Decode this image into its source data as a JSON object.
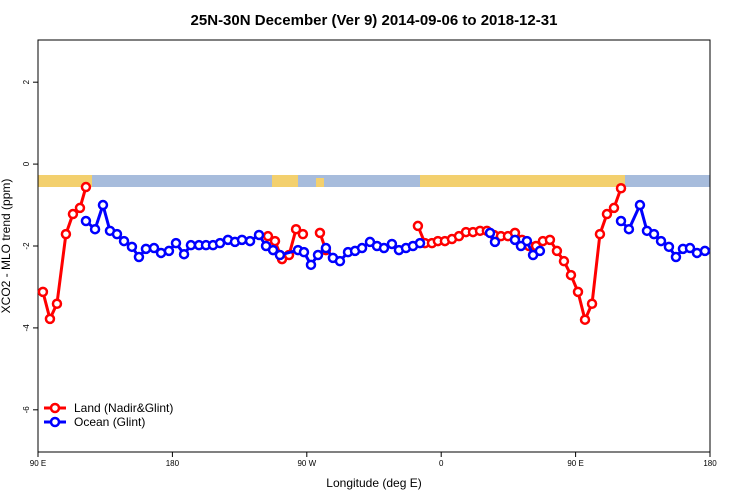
{
  "chart_data": {
    "type": "line",
    "title": "25N-30N December (Ver 9)   2014-09-06 to 2018-12-31",
    "x_label": "Longitude (deg E)",
    "y_label": "XCO2 - MLO trend (ppm)",
    "xlim": [
      90,
      540
    ],
    "ylim": [
      -7.03,
      3.03
    ],
    "xticks": [
      {
        "value": 90,
        "label": "90 E"
      },
      180,
      {
        "value": 270,
        "label": "90 W"
      },
      {
        "value": 360,
        "label": "0"
      },
      {
        "value": 450,
        "label": "90 E"
      },
      {
        "value": 540,
        "label": "180"
      }
    ],
    "yticks": [
      -6,
      -4,
      -2,
      0,
      2
    ],
    "legend": "bottom-left",
    "series": [
      {
        "name": "Land (Nadir&Glint)",
        "color": "#ff0000",
        "x": [
          93.3,
          98.0,
          102.7,
          108.7,
          113.4,
          118.1,
          122.1,
          null,
          244.0,
          248.7,
          253.4,
          258.1,
          262.8,
          267.4,
          null,
          278.8,
          282.8,
          null,
          344.4,
          349.1,
          353.8,
          357.8,
          362.5,
          367.2,
          371.9,
          376.6,
          381.3,
          386.0,
          390.6,
          395.3,
          400.0,
          404.7,
          409.4,
          414.1,
          418.8,
          423.5,
          428.1,
          432.8,
          437.5,
          442.2,
          446.9,
          451.6,
          456.3,
          461.0,
          466.3,
          471.0,
          475.7,
          480.4
        ],
        "values": [
          -3.12,
          -3.78,
          -3.41,
          -1.71,
          -1.22,
          -1.07,
          -0.56,
          null,
          -1.76,
          -1.88,
          -2.32,
          -2.22,
          -1.59,
          -1.71,
          null,
          -1.68,
          -2.1,
          null,
          -1.51,
          -1.93,
          -1.93,
          -1.88,
          -1.88,
          -1.83,
          -1.76,
          -1.66,
          -1.66,
          -1.63,
          -1.63,
          -1.73,
          -1.76,
          -1.76,
          -1.68,
          -1.85,
          -2.0,
          -2.0,
          -1.88,
          -1.85,
          -2.12,
          -2.37,
          -2.71,
          -3.12,
          -3.8,
          -3.41,
          -1.71,
          -1.22,
          -1.07,
          -0.59
        ]
      },
      {
        "name": "Ocean (Glint)",
        "color": "#0000ff",
        "x": [
          122.1,
          128.2,
          133.5,
          138.2,
          142.9,
          147.6,
          152.9,
          157.6,
          162.3,
          167.7,
          172.4,
          177.7,
          182.4,
          187.8,
          192.4,
          197.8,
          202.5,
          207.2,
          211.9,
          217.2,
          221.9,
          226.6,
          232.0,
          238.0,
          242.7,
          247.4,
          252.0,
          264.1,
          268.1,
          272.8,
          277.5,
          282.8,
          287.5,
          292.2,
          297.6,
          302.3,
          307.0,
          312.3,
          317.0,
          321.7,
          327.0,
          331.7,
          336.4,
          341.1,
          345.8,
          null,
          392.7,
          396.0,
          null,
          409.4,
          413.4,
          417.4,
          421.5,
          426.1,
          null,
          480.4,
          485.7,
          493.1,
          497.8,
          502.5,
          507.2,
          512.5,
          517.2,
          521.9,
          526.6,
          531.3,
          536.6
        ],
        "values": [
          -1.39,
          -1.59,
          -1.0,
          -1.63,
          -1.71,
          -1.88,
          -2.02,
          -2.27,
          -2.07,
          -2.05,
          -2.17,
          -2.12,
          -1.93,
          -2.2,
          -1.98,
          -1.98,
          -1.98,
          -1.98,
          -1.93,
          -1.85,
          -1.9,
          -1.85,
          -1.88,
          -1.73,
          -2.0,
          -2.1,
          -2.22,
          -2.1,
          -2.15,
          -2.46,
          -2.22,
          -2.05,
          -2.29,
          -2.37,
          -2.15,
          -2.12,
          -2.05,
          -1.9,
          -2.0,
          -2.05,
          -1.95,
          -2.1,
          -2.05,
          -2.0,
          -1.93,
          null,
          -1.68,
          -1.9,
          null,
          -1.85,
          -2.0,
          -1.88,
          -2.22,
          -2.12,
          null,
          -1.39,
          -1.59,
          -1.0,
          -1.63,
          -1.71,
          -1.88,
          -2.02,
          -2.27,
          -2.07,
          -2.05,
          -2.17,
          -2.12
        ]
      }
    ]
  }
}
